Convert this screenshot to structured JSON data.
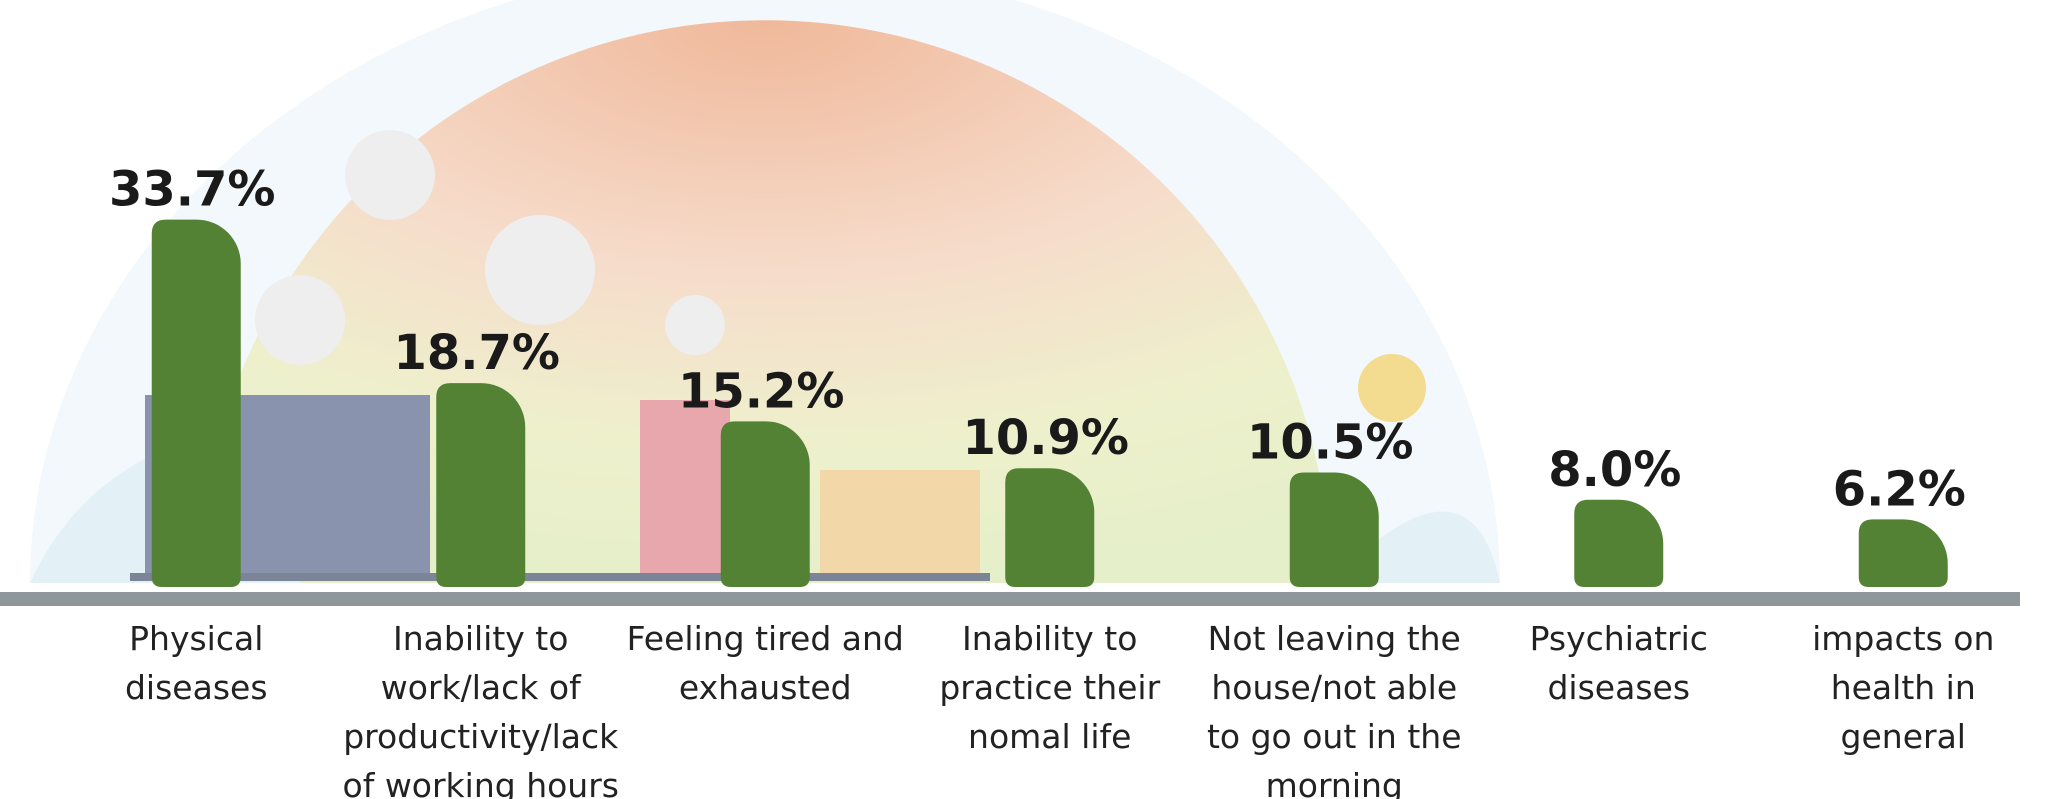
{
  "chart_data": {
    "type": "bar",
    "categories": [
      "Physical diseases",
      "Inability to work/lack of productivity/lack of working hours",
      "Feeling tired and exhausted",
      "Inability to practice their nomal life",
      "Not leaving the house/not able to go out in the morning",
      "Psychiatric diseases",
      "impacts on health in general"
    ],
    "values": [
      33.7,
      18.7,
      15.2,
      10.9,
      10.5,
      8.0,
      6.2
    ],
    "value_labels": [
      "33.7%",
      "18.7%",
      "15.2%",
      "10.9%",
      "10.5%",
      "8.0%",
      "6.2%"
    ],
    "color": "#548235"
  }
}
